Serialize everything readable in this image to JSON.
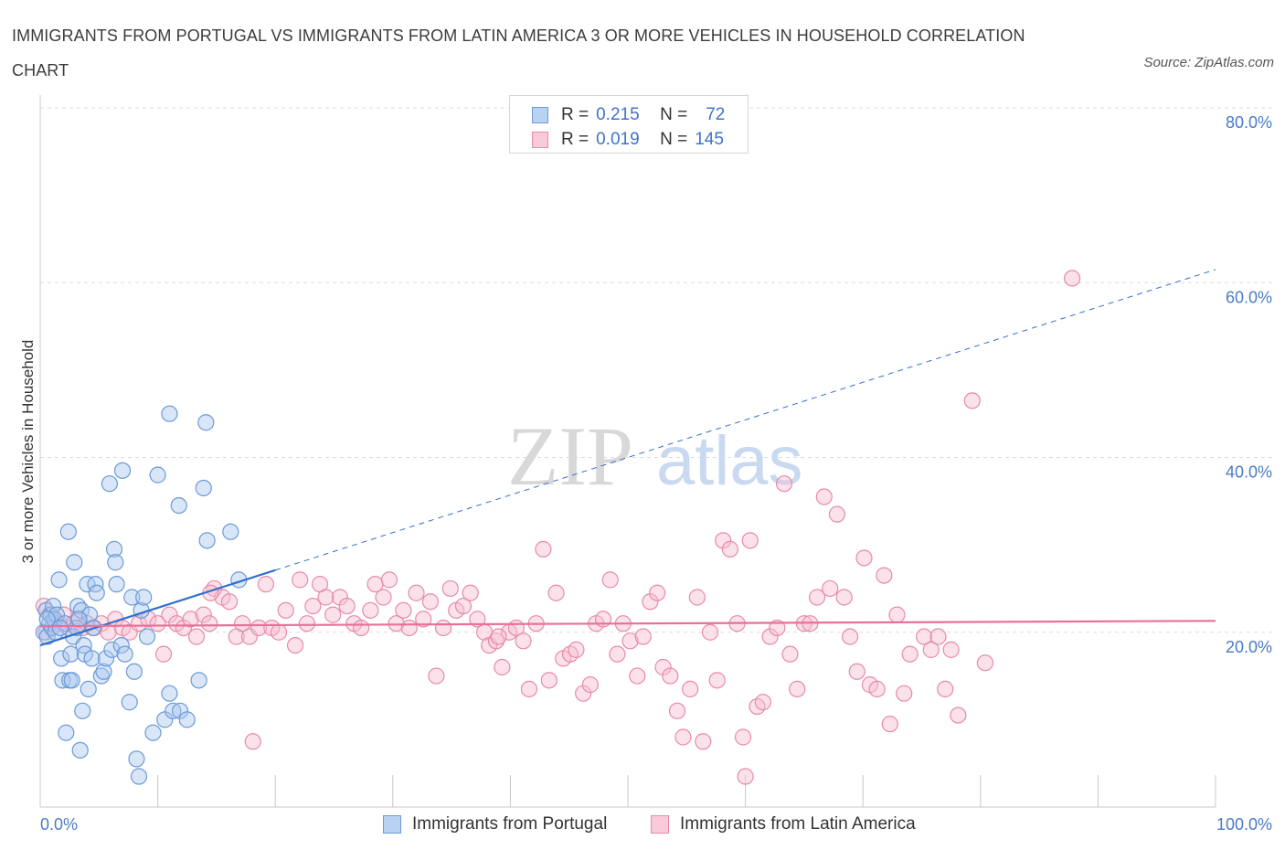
{
  "header": {
    "title": "IMMIGRANTS FROM PORTUGAL VS IMMIGRANTS FROM LATIN AMERICA 3 OR MORE VEHICLES IN HOUSEHOLD CORRELATION CHART",
    "source": "Source: ZipAtlas.com"
  },
  "legend": {
    "rows": [
      {
        "r_label": "R =",
        "r_value": "0.215",
        "n_label": "N =",
        "n_value": "72"
      },
      {
        "r_label": "R =",
        "r_value": "0.019",
        "n_label": "N =",
        "n_value": "145"
      }
    ]
  },
  "bottom_legend": {
    "portugal": "Immigrants from Portugal",
    "latin": "Immigrants from Latin America"
  },
  "watermark": {
    "zip": "ZIP",
    "atlas": "atlas"
  },
  "colors": {
    "portugal_fill": "#aac8f0",
    "portugal_stroke": "#6b9ad8",
    "portugal_line": "#3070d0",
    "latin_fill": "#f6bfd0",
    "latin_stroke": "#e88aa8",
    "latin_line": "#e8709a",
    "grid": "#dcdcdc",
    "tick_text": "#4a7bc8"
  },
  "chart_data": {
    "type": "scatter",
    "title": "IMMIGRANTS FROM PORTUGAL VS IMMIGRANTS FROM LATIN AMERICA 3 OR MORE VEHICLES IN HOUSEHOLD CORRELATION CHART",
    "ylabel": "3 or more Vehicles in Household",
    "xlabel": "",
    "xlim": [
      0,
      100
    ],
    "ylim": [
      0,
      80
    ],
    "y_ticks": [
      {
        "value": 20,
        "label": "20.0%"
      },
      {
        "value": 40,
        "label": "40.0%"
      },
      {
        "value": 60,
        "label": "60.0%"
      },
      {
        "value": 80,
        "label": "80.0%"
      }
    ],
    "x_tick_labels": [
      {
        "value": 0,
        "label": "0.0%"
      },
      {
        "value": 100,
        "label": "100.0%"
      }
    ],
    "grid": true,
    "legend_position": "top-center",
    "series": [
      {
        "name": "Immigrants from Portugal",
        "R": 0.215,
        "N": 72,
        "trend": {
          "x0": 0,
          "y0": 18.5,
          "x1": 100,
          "y1": 61.5,
          "solid_until_x": 20
        },
        "points": [
          [
            0.3,
            20
          ],
          [
            0.5,
            22.5
          ],
          [
            0.6,
            19.5
          ],
          [
            0.8,
            21
          ],
          [
            0.9,
            22
          ],
          [
            1.0,
            20.5
          ],
          [
            1.1,
            23
          ],
          [
            1.2,
            21.5
          ],
          [
            1.3,
            20
          ],
          [
            1.4,
            22
          ],
          [
            1.6,
            26
          ],
          [
            1.8,
            17
          ],
          [
            1.9,
            14.5
          ],
          [
            2.1,
            21
          ],
          [
            2.2,
            8.5
          ],
          [
            2.4,
            31.5
          ],
          [
            2.5,
            14.5
          ],
          [
            2.6,
            17.5
          ],
          [
            2.8,
            19.5
          ],
          [
            2.9,
            28
          ],
          [
            3.1,
            20.5
          ],
          [
            3.2,
            23
          ],
          [
            3.4,
            6.5
          ],
          [
            3.5,
            22.5
          ],
          [
            3.6,
            11
          ],
          [
            3.7,
            18.5
          ],
          [
            3.8,
            17.5
          ],
          [
            4.0,
            25.5
          ],
          [
            4.1,
            13.5
          ],
          [
            4.2,
            22
          ],
          [
            4.4,
            17
          ],
          [
            4.5,
            20.5
          ],
          [
            4.7,
            25.5
          ],
          [
            4.8,
            24.5
          ],
          [
            5.2,
            15
          ],
          [
            5.4,
            15.5
          ],
          [
            5.6,
            17
          ],
          [
            5.9,
            37
          ],
          [
            6.1,
            18
          ],
          [
            6.3,
            29.5
          ],
          [
            6.4,
            28
          ],
          [
            6.5,
            25.5
          ],
          [
            6.9,
            18.5
          ],
          [
            7.0,
            38.5
          ],
          [
            7.2,
            17.5
          ],
          [
            7.6,
            12
          ],
          [
            7.8,
            24
          ],
          [
            8.0,
            15.5
          ],
          [
            8.2,
            5.5
          ],
          [
            8.4,
            3.5
          ],
          [
            8.6,
            22.5
          ],
          [
            8.8,
            24
          ],
          [
            9.1,
            19.5
          ],
          [
            9.6,
            8.5
          ],
          [
            10.0,
            38
          ],
          [
            10.6,
            10
          ],
          [
            11.0,
            45
          ],
          [
            11.0,
            13
          ],
          [
            11.3,
            11
          ],
          [
            11.9,
            11
          ],
          [
            12.5,
            10
          ],
          [
            13.5,
            14.5
          ],
          [
            13.9,
            36.5
          ],
          [
            14.1,
            44
          ],
          [
            14.2,
            30.5
          ],
          [
            11.8,
            34.5
          ],
          [
            16.2,
            31.5
          ],
          [
            16.9,
            26
          ],
          [
            0.6,
            21.5
          ],
          [
            1.7,
            20.5
          ],
          [
            2.7,
            14.5
          ],
          [
            3.3,
            21.5
          ]
        ]
      },
      {
        "name": "Immigrants from Latin America",
        "R": 0.019,
        "N": 145,
        "trend": {
          "x0": 0,
          "y0": 20.7,
          "x1": 100,
          "y1": 21.3
        },
        "points": [
          [
            0.3,
            23
          ],
          [
            0.5,
            20
          ],
          [
            0.8,
            22
          ],
          [
            1.2,
            21.5
          ],
          [
            1.6,
            21
          ],
          [
            2.0,
            22
          ],
          [
            2.4,
            20.5
          ],
          [
            2.8,
            21
          ],
          [
            3.2,
            21.5
          ],
          [
            3.6,
            20.5
          ],
          [
            4.0,
            21
          ],
          [
            4.6,
            20.5
          ],
          [
            5.2,
            21
          ],
          [
            5.8,
            20
          ],
          [
            6.4,
            21.5
          ],
          [
            7.0,
            20.5
          ],
          [
            7.6,
            20
          ],
          [
            8.4,
            21
          ],
          [
            9.2,
            21.5
          ],
          [
            10.0,
            21
          ],
          [
            10.5,
            17.5
          ],
          [
            11.0,
            22
          ],
          [
            11.6,
            21
          ],
          [
            12.2,
            20.5
          ],
          [
            12.8,
            21.5
          ],
          [
            13.3,
            19.5
          ],
          [
            13.9,
            22
          ],
          [
            14.4,
            21
          ],
          [
            14.8,
            25
          ],
          [
            15.5,
            24
          ],
          [
            16.1,
            23.5
          ],
          [
            16.7,
            19.5
          ],
          [
            17.2,
            21
          ],
          [
            17.8,
            19.5
          ],
          [
            18.6,
            20.5
          ],
          [
            19.2,
            25.5
          ],
          [
            19.7,
            20.5
          ],
          [
            20.3,
            20
          ],
          [
            20.9,
            22.5
          ],
          [
            21.7,
            18.5
          ],
          [
            22.1,
            26
          ],
          [
            22.7,
            21
          ],
          [
            23.2,
            23
          ],
          [
            23.8,
            25.5
          ],
          [
            24.3,
            24
          ],
          [
            24.9,
            22
          ],
          [
            25.5,
            24
          ],
          [
            26.1,
            23
          ],
          [
            26.7,
            21
          ],
          [
            27.3,
            20.5
          ],
          [
            28.1,
            22.5
          ],
          [
            28.5,
            25.5
          ],
          [
            29.2,
            24
          ],
          [
            29.7,
            26
          ],
          [
            30.3,
            21
          ],
          [
            30.9,
            22.5
          ],
          [
            31.4,
            20.5
          ],
          [
            32.0,
            24.5
          ],
          [
            32.6,
            21.5
          ],
          [
            33.2,
            23.5
          ],
          [
            33.7,
            15
          ],
          [
            34.3,
            20.5
          ],
          [
            34.9,
            25
          ],
          [
            35.4,
            22.5
          ],
          [
            36.0,
            23
          ],
          [
            36.6,
            24.5
          ],
          [
            37.2,
            21.5
          ],
          [
            37.8,
            20
          ],
          [
            38.2,
            18.5
          ],
          [
            38.8,
            19
          ],
          [
            39.3,
            16
          ],
          [
            39.9,
            20
          ],
          [
            40.5,
            20.5
          ],
          [
            41.1,
            19
          ],
          [
            41.6,
            13.5
          ],
          [
            42.2,
            21
          ],
          [
            42.8,
            29.5
          ],
          [
            43.3,
            14.5
          ],
          [
            43.9,
            24.5
          ],
          [
            44.5,
            17
          ],
          [
            45.1,
            17.5
          ],
          [
            45.6,
            18
          ],
          [
            46.2,
            13
          ],
          [
            46.8,
            14
          ],
          [
            47.3,
            21
          ],
          [
            47.9,
            21.5
          ],
          [
            48.5,
            26
          ],
          [
            49.1,
            17.5
          ],
          [
            49.6,
            21
          ],
          [
            50.2,
            19
          ],
          [
            50.8,
            15
          ],
          [
            51.3,
            19.5
          ],
          [
            51.9,
            23.5
          ],
          [
            52.5,
            24.5
          ],
          [
            53.0,
            16
          ],
          [
            53.6,
            15
          ],
          [
            54.2,
            11
          ],
          [
            54.7,
            8
          ],
          [
            55.3,
            13.5
          ],
          [
            55.9,
            24
          ],
          [
            56.4,
            7.5
          ],
          [
            57.0,
            20
          ],
          [
            57.6,
            14.5
          ],
          [
            58.1,
            30.5
          ],
          [
            58.7,
            29.5
          ],
          [
            59.3,
            21
          ],
          [
            59.8,
            8
          ],
          [
            60.4,
            30.5
          ],
          [
            61.0,
            11.5
          ],
          [
            61.5,
            12
          ],
          [
            62.1,
            19.5
          ],
          [
            62.7,
            20.5
          ],
          [
            63.3,
            37
          ],
          [
            63.8,
            17.5
          ],
          [
            64.4,
            13.5
          ],
          [
            65.0,
            21
          ],
          [
            65.5,
            21
          ],
          [
            66.1,
            24
          ],
          [
            66.7,
            35.5
          ],
          [
            67.2,
            25
          ],
          [
            67.8,
            33.5
          ],
          [
            68.4,
            24
          ],
          [
            68.9,
            19.5
          ],
          [
            69.5,
            15.5
          ],
          [
            70.1,
            28.5
          ],
          [
            70.6,
            14
          ],
          [
            71.2,
            13.5
          ],
          [
            71.8,
            26.5
          ],
          [
            72.3,
            9.5
          ],
          [
            72.9,
            22
          ],
          [
            73.5,
            13
          ],
          [
            74.0,
            17.5
          ],
          [
            75.2,
            19.5
          ],
          [
            75.8,
            18
          ],
          [
            76.4,
            19.5
          ],
          [
            77.0,
            13.5
          ],
          [
            77.5,
            18
          ],
          [
            78.1,
            10.5
          ],
          [
            79.3,
            46.5
          ],
          [
            80.4,
            16.5
          ],
          [
            87.8,
            60.5
          ],
          [
            39.0,
            19.5
          ],
          [
            60.0,
            3.5
          ],
          [
            18.1,
            7.5
          ],
          [
            14.5,
            24.5
          ]
        ]
      }
    ]
  }
}
